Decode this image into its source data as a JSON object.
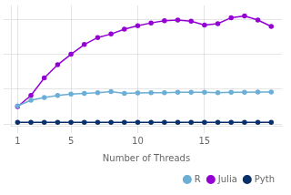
{
  "chart_data": {
    "type": "line",
    "xlabel": "Number of Threads",
    "x": [
      1,
      2,
      3,
      4,
      5,
      6,
      7,
      8,
      9,
      10,
      11,
      12,
      13,
      14,
      15,
      16,
      17,
      18,
      19,
      20
    ],
    "series": [
      {
        "name": "R",
        "color": "#6baed6",
        "marker": "circle",
        "values": [
          0.52,
          0.68,
          0.76,
          0.82,
          0.86,
          0.88,
          0.9,
          0.93,
          0.88,
          0.89,
          0.9,
          0.9,
          0.91,
          0.91,
          0.91,
          0.9,
          0.91,
          0.91,
          0.92,
          0.92
        ]
      },
      {
        "name": "Julia",
        "color": "#9400d3",
        "marker": "circle",
        "values": [
          0.5,
          0.82,
          1.32,
          1.7,
          2.0,
          2.28,
          2.48,
          2.58,
          2.72,
          2.82,
          2.9,
          2.96,
          2.98,
          2.95,
          2.84,
          2.88,
          3.05,
          3.1,
          2.98,
          2.8
        ]
      },
      {
        "name": "Pyth",
        "color": "#08306b",
        "marker": "circle",
        "values": [
          0.05,
          0.05,
          0.05,
          0.05,
          0.05,
          0.05,
          0.05,
          0.05,
          0.05,
          0.05,
          0.05,
          0.05,
          0.05,
          0.05,
          0.05,
          0.05,
          0.05,
          0.05,
          0.05,
          0.05
        ]
      }
    ],
    "xlim": [
      0.5,
      20.8
    ],
    "xticks": [
      1,
      5,
      10,
      15
    ],
    "ylim": [
      -0.05,
      3.4
    ],
    "yticks": [
      0,
      1,
      2,
      3
    ],
    "grid": true,
    "legend": "lower right",
    "tick_labels": "x"
  }
}
